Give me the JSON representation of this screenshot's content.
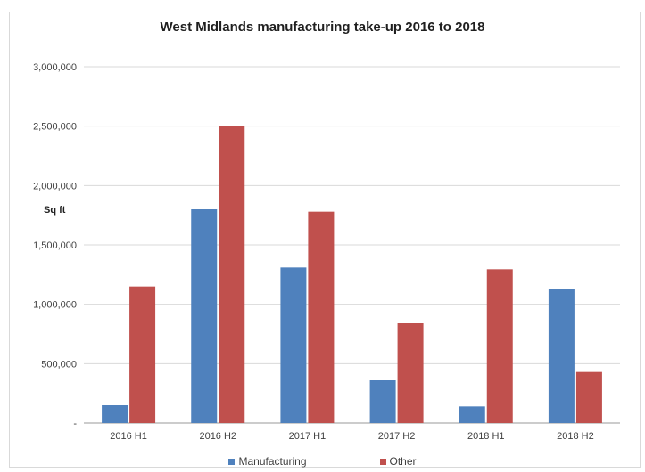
{
  "chart_data": {
    "type": "bar",
    "title": "West Midlands manufacturing take-up 2016 to 2018",
    "ylabel": "Sq ft",
    "xlabel": "",
    "categories": [
      "2016 H1",
      "2016 H2",
      "2017 H1",
      "2017 H2",
      "2018 H1",
      "2018 H2"
    ],
    "series": [
      {
        "name": "Manufacturing",
        "color": "#4f81bd",
        "values": [
          150000,
          1800000,
          1310000,
          360000,
          140000,
          1130000
        ]
      },
      {
        "name": "Other",
        "color": "#c0504d",
        "values": [
          1150000,
          2500000,
          1780000,
          840000,
          1295000,
          430000
        ]
      }
    ],
    "ylim": [
      0,
      3000000
    ],
    "yticks": [
      "-",
      "500,000",
      "1,000,000",
      "1,500,000",
      "2,000,000",
      "2,500,000",
      "3,000,000"
    ],
    "grid": true,
    "legend": "bottom"
  }
}
